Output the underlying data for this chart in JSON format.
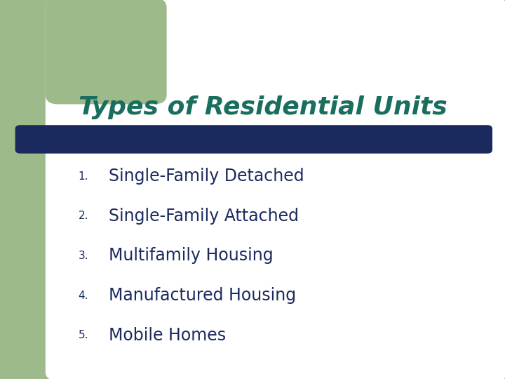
{
  "title": "Types of Residential Units",
  "title_color": "#1a6e5e",
  "title_fontsize": 26,
  "bar_color": "#1a2a5e",
  "items": [
    {
      "num": "1.",
      "text": "Single-Family Detached"
    },
    {
      "num": "2.",
      "text": "Single-Family Attached"
    },
    {
      "num": "3.",
      "text": "Multifamily Housing"
    },
    {
      "num": "4.",
      "text": "Manufactured Housing"
    },
    {
      "num": "5.",
      "text": "Mobile Homes"
    }
  ],
  "item_color": "#1a2a5e",
  "num_fontsize": 11,
  "item_fontsize": 17,
  "bg_color": "#ffffff",
  "green_color": "#9dba8a",
  "slide_bg": "#9dba8a"
}
